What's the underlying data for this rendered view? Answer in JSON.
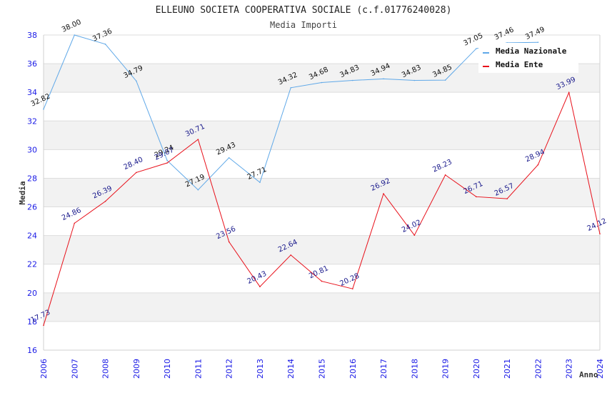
{
  "chart_data": {
    "type": "line",
    "title": "ELLEUNO SOCIETA COOPERATIVA SOCIALE (c.f.01776240028)",
    "subtitle": "Media Importi",
    "xlabel": "Anno",
    "ylabel": "Media",
    "ylim": [
      16,
      38
    ],
    "yticks": [
      "16",
      "18",
      "20",
      "22",
      "24",
      "26",
      "28",
      "30",
      "32",
      "34",
      "36",
      "38"
    ],
    "categories": [
      "2006",
      "2007",
      "2008",
      "2009",
      "2010",
      "2011",
      "2012",
      "2013",
      "2014",
      "2015",
      "2016",
      "2017",
      "2018",
      "2019",
      "2020",
      "2021",
      "2022",
      "2023",
      "2024"
    ],
    "grid": true,
    "legend_position": "top-right",
    "series": [
      {
        "name": "Media Nazionale",
        "color": "#5fa8e8",
        "label_color": "#111111",
        "values": [
          32.82,
          38.0,
          37.36,
          34.79,
          29.24,
          27.19,
          29.43,
          27.71,
          34.32,
          34.68,
          34.83,
          34.94,
          34.83,
          34.85,
          37.05,
          37.46,
          37.49,
          null,
          null
        ],
        "labels": [
          "32.82",
          "38.00",
          "37.36",
          "34.79",
          "29.24",
          "27.19",
          "29.43",
          "27.71",
          "34.32",
          "34.68",
          "34.83",
          "34.94",
          "34.83",
          "34.85",
          "37.05",
          "37.46",
          "37.49",
          null,
          null
        ]
      },
      {
        "name": "Media Ente",
        "color": "#e8101a",
        "label_color": "#1a1a8c",
        "values": [
          17.73,
          24.86,
          26.39,
          28.4,
          29.07,
          30.71,
          23.56,
          20.43,
          22.64,
          20.81,
          20.28,
          26.92,
          24.02,
          28.23,
          26.71,
          26.57,
          28.94,
          33.99,
          24.12
        ],
        "labels": [
          "17.73",
          "24.86",
          "26.39",
          "28.40",
          "29.07",
          "30.71",
          "23.56",
          "20.43",
          "22.64",
          "20.81",
          "20.28",
          "26.92",
          "24.02",
          "28.23",
          "26.71",
          "26.57",
          "28.94",
          "33.99",
          "24.12"
        ]
      }
    ]
  }
}
